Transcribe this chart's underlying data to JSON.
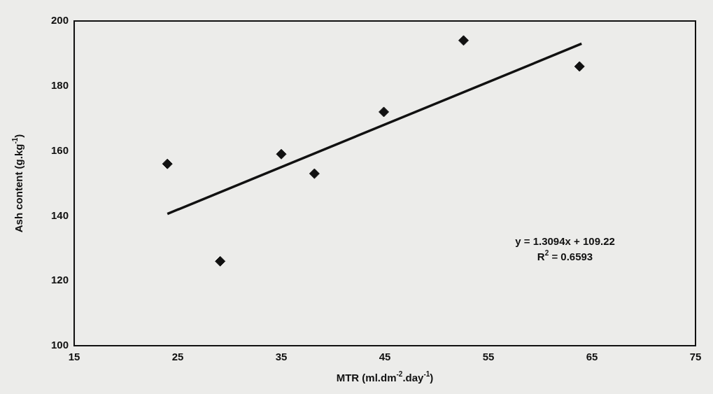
{
  "chart_data": {
    "type": "scatter",
    "xlabel": "MTR (ml.dm$^{-2}$.day$^{-1}$)",
    "ylabel": "Ash content (g.kg$^{-1}$)",
    "xlim": [
      15,
      75
    ],
    "xticks": [
      15,
      25,
      35,
      45,
      55,
      65,
      75
    ],
    "ylim": [
      100,
      200
    ],
    "yticks": [
      100,
      120,
      140,
      160,
      180,
      200
    ],
    "grid": false,
    "legend": false,
    "marker": "diamond",
    "series": [
      {
        "type": "scatter",
        "color": "#111111",
        "x": [
          24,
          29.1,
          35,
          38.2,
          44.9,
          52.6,
          63.8
        ],
        "values": [
          156,
          126,
          159,
          153,
          172,
          194,
          186
        ]
      },
      {
        "type": "line",
        "color": "#111111",
        "marker": "none",
        "line_style": "solid",
        "x": [
          24,
          64
        ],
        "values": [
          140.6,
          193.0
        ]
      }
    ],
    "annotations": [
      "y = 1.3094x + 109.22",
      "R$^{2}$ = 0.6593"
    ]
  }
}
